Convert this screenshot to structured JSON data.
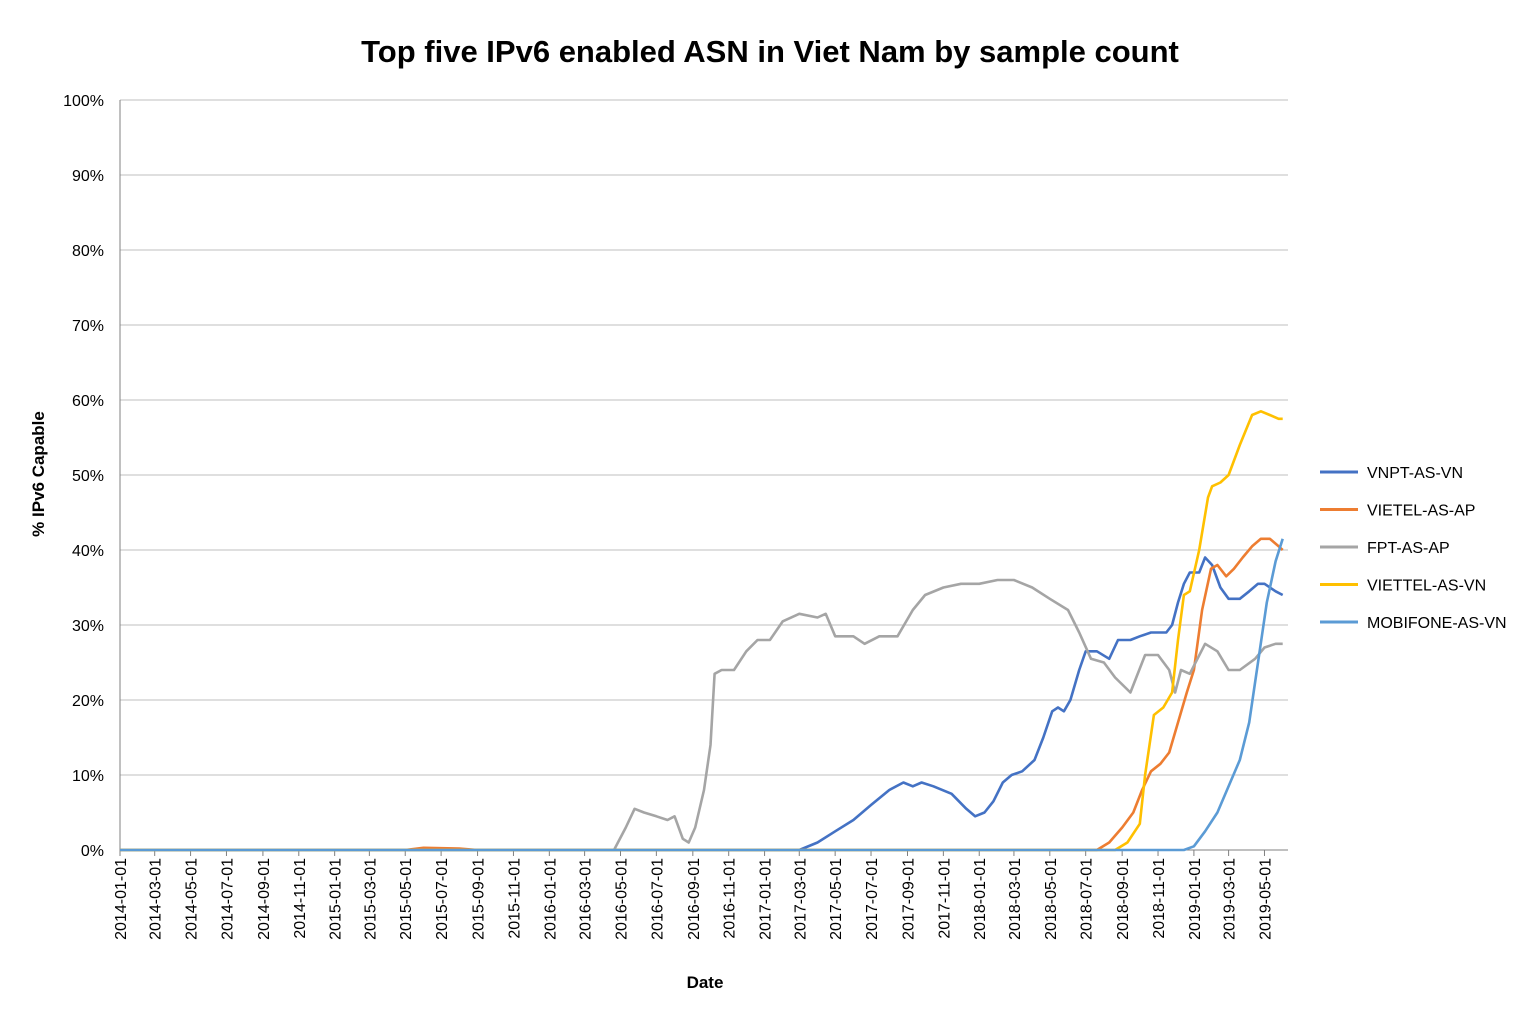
{
  "chart_data": {
    "type": "line",
    "title": "Top five IPv6 enabled ASN in Viet Nam by sample count",
    "xlabel": "Date",
    "ylabel": "% IPv6 Capable",
    "x_range": [
      "2014-01-01",
      "2019-06-10"
    ],
    "x_tick_labels": [
      "2014-01-01",
      "2014-03-01",
      "2014-05-01",
      "2014-07-01",
      "2014-09-01",
      "2014-11-01",
      "2015-01-01",
      "2015-03-01",
      "2015-05-01",
      "2015-07-01",
      "2015-09-01",
      "2015-11-01",
      "2016-01-01",
      "2016-03-01",
      "2016-05-01",
      "2016-07-01",
      "2016-09-01",
      "2016-11-01",
      "2017-01-01",
      "2017-03-01",
      "2017-05-01",
      "2017-07-01",
      "2017-09-01",
      "2017-11-01",
      "2018-01-01",
      "2018-03-01",
      "2018-05-01",
      "2018-07-01",
      "2018-09-01",
      "2018-11-01",
      "2019-01-01",
      "2019-03-01",
      "2019-05-01"
    ],
    "y_tick_labels": [
      "0%",
      "10%",
      "20%",
      "30%",
      "40%",
      "50%",
      "60%",
      "70%",
      "80%",
      "90%",
      "100%"
    ],
    "ylim": [
      0,
      100
    ],
    "grid": true,
    "legend_position": "right",
    "series": [
      {
        "name": "VNPT-AS-VN",
        "color": "#4472c4",
        "points": [
          [
            "2014-01-01",
            0
          ],
          [
            "2017-03-01",
            0
          ],
          [
            "2017-04-01",
            1
          ],
          [
            "2017-05-01",
            2.5
          ],
          [
            "2017-06-01",
            4
          ],
          [
            "2017-07-01",
            6
          ],
          [
            "2017-08-01",
            8
          ],
          [
            "2017-08-25",
            9
          ],
          [
            "2017-09-10",
            8.5
          ],
          [
            "2017-09-25",
            9
          ],
          [
            "2017-10-15",
            8.5
          ],
          [
            "2017-11-15",
            7.5
          ],
          [
            "2017-12-10",
            5.5
          ],
          [
            "2017-12-25",
            4.5
          ],
          [
            "2018-01-10",
            5
          ],
          [
            "2018-01-25",
            6.5
          ],
          [
            "2018-02-10",
            9
          ],
          [
            "2018-02-25",
            10
          ],
          [
            "2018-03-15",
            10.5
          ],
          [
            "2018-04-05",
            12
          ],
          [
            "2018-04-20",
            15
          ],
          [
            "2018-05-05",
            18.5
          ],
          [
            "2018-05-15",
            19
          ],
          [
            "2018-05-25",
            18.5
          ],
          [
            "2018-06-05",
            20
          ],
          [
            "2018-06-20",
            24
          ],
          [
            "2018-07-01",
            26.5
          ],
          [
            "2018-07-20",
            26.5
          ],
          [
            "2018-08-10",
            25.5
          ],
          [
            "2018-08-25",
            28
          ],
          [
            "2018-09-15",
            28
          ],
          [
            "2018-10-01",
            28.5
          ],
          [
            "2018-10-20",
            29
          ],
          [
            "2018-11-15",
            29
          ],
          [
            "2018-11-25",
            30
          ],
          [
            "2018-12-05",
            33
          ],
          [
            "2018-12-15",
            35.5
          ],
          [
            "2018-12-25",
            37
          ],
          [
            "2019-01-10",
            37
          ],
          [
            "2019-01-20",
            39
          ],
          [
            "2019-02-01",
            38
          ],
          [
            "2019-02-15",
            35
          ],
          [
            "2019-03-01",
            33.5
          ],
          [
            "2019-03-20",
            33.5
          ],
          [
            "2019-04-05",
            34.5
          ],
          [
            "2019-04-20",
            35.5
          ],
          [
            "2019-05-01",
            35.5
          ],
          [
            "2019-05-20",
            34.5
          ],
          [
            "2019-06-01",
            34
          ]
        ]
      },
      {
        "name": "VIETEL-AS-AP",
        "color": "#ed7d31",
        "points": [
          [
            "2014-01-01",
            0
          ],
          [
            "2015-05-01",
            0
          ],
          [
            "2015-06-01",
            0.3
          ],
          [
            "2015-08-01",
            0.2
          ],
          [
            "2015-09-01",
            0
          ],
          [
            "2018-07-20",
            0
          ],
          [
            "2018-08-10",
            1
          ],
          [
            "2018-09-01",
            3
          ],
          [
            "2018-09-20",
            5
          ],
          [
            "2018-10-05",
            8
          ],
          [
            "2018-10-20",
            10.5
          ],
          [
            "2018-11-05",
            11.5
          ],
          [
            "2018-11-20",
            13
          ],
          [
            "2018-12-05",
            17
          ],
          [
            "2018-12-20",
            21
          ],
          [
            "2019-01-01",
            24
          ],
          [
            "2019-01-15",
            32
          ],
          [
            "2019-01-30",
            37.5
          ],
          [
            "2019-02-10",
            38
          ],
          [
            "2019-02-25",
            36.5
          ],
          [
            "2019-03-10",
            37.5
          ],
          [
            "2019-03-25",
            39
          ],
          [
            "2019-04-10",
            40.5
          ],
          [
            "2019-04-25",
            41.5
          ],
          [
            "2019-05-10",
            41.5
          ],
          [
            "2019-05-25",
            40.5
          ],
          [
            "2019-06-01",
            40
          ]
        ]
      },
      {
        "name": "FPT-AS-AP",
        "color": "#a5a5a5",
        "points": [
          [
            "2014-01-01",
            0
          ],
          [
            "2016-04-20",
            0
          ],
          [
            "2016-05-10",
            3
          ],
          [
            "2016-05-25",
            5.5
          ],
          [
            "2016-06-10",
            5
          ],
          [
            "2016-07-01",
            4.5
          ],
          [
            "2016-07-20",
            4
          ],
          [
            "2016-08-01",
            4.5
          ],
          [
            "2016-08-15",
            1.5
          ],
          [
            "2016-08-25",
            1
          ],
          [
            "2016-09-05",
            3
          ],
          [
            "2016-09-20",
            8
          ],
          [
            "2016-10-01",
            14
          ],
          [
            "2016-10-08",
            23.5
          ],
          [
            "2016-10-20",
            24
          ],
          [
            "2016-11-10",
            24
          ],
          [
            "2016-12-01",
            26.5
          ],
          [
            "2016-12-20",
            28
          ],
          [
            "2017-01-10",
            28
          ],
          [
            "2017-02-01",
            30.5
          ],
          [
            "2017-03-01",
            31.5
          ],
          [
            "2017-04-01",
            31
          ],
          [
            "2017-04-15",
            31.5
          ],
          [
            "2017-05-01",
            28.5
          ],
          [
            "2017-06-01",
            28.5
          ],
          [
            "2017-06-20",
            27.5
          ],
          [
            "2017-07-15",
            28.5
          ],
          [
            "2017-08-15",
            28.5
          ],
          [
            "2017-09-10",
            32
          ],
          [
            "2017-10-01",
            34
          ],
          [
            "2017-11-01",
            35
          ],
          [
            "2017-12-01",
            35.5
          ],
          [
            "2018-01-01",
            35.5
          ],
          [
            "2018-02-01",
            36
          ],
          [
            "2018-03-01",
            36
          ],
          [
            "2018-04-01",
            35
          ],
          [
            "2018-05-01",
            33.5
          ],
          [
            "2018-06-01",
            32
          ],
          [
            "2018-06-20",
            29
          ],
          [
            "2018-07-10",
            25.5
          ],
          [
            "2018-08-01",
            25
          ],
          [
            "2018-08-20",
            23
          ],
          [
            "2018-09-15",
            21
          ],
          [
            "2018-10-10",
            26
          ],
          [
            "2018-11-01",
            26
          ],
          [
            "2018-11-20",
            24
          ],
          [
            "2018-11-30",
            21
          ],
          [
            "2018-12-10",
            24
          ],
          [
            "2018-12-25",
            23.5
          ],
          [
            "2019-01-20",
            27.5
          ],
          [
            "2019-02-10",
            26.5
          ],
          [
            "2019-03-01",
            24
          ],
          [
            "2019-03-20",
            24
          ],
          [
            "2019-04-15",
            25.5
          ],
          [
            "2019-05-01",
            27
          ],
          [
            "2019-05-20",
            27.5
          ],
          [
            "2019-06-01",
            27.5
          ]
        ]
      },
      {
        "name": "VIETTEL-AS-VN",
        "color": "#ffc000",
        "points": [
          [
            "2014-01-01",
            0
          ],
          [
            "2018-08-20",
            0
          ],
          [
            "2018-09-10",
            1
          ],
          [
            "2018-10-01",
            3.5
          ],
          [
            "2018-10-10",
            10
          ],
          [
            "2018-10-25",
            18
          ],
          [
            "2018-11-10",
            19
          ],
          [
            "2018-11-25",
            21
          ],
          [
            "2018-12-05",
            28
          ],
          [
            "2018-12-15",
            34
          ],
          [
            "2018-12-25",
            34.5
          ],
          [
            "2019-01-10",
            40
          ],
          [
            "2019-01-25",
            47
          ],
          [
            "2019-02-01",
            48.5
          ],
          [
            "2019-02-15",
            49
          ],
          [
            "2019-03-01",
            50
          ],
          [
            "2019-03-20",
            54
          ],
          [
            "2019-04-10",
            58
          ],
          [
            "2019-04-25",
            58.5
          ],
          [
            "2019-05-10",
            58
          ],
          [
            "2019-05-25",
            57.5
          ],
          [
            "2019-06-01",
            57.5
          ]
        ]
      },
      {
        "name": "MOBIFONE-AS-VN",
        "color": "#5b9bd5",
        "points": [
          [
            "2014-01-01",
            0
          ],
          [
            "2018-12-15",
            0
          ],
          [
            "2019-01-01",
            0.5
          ],
          [
            "2019-01-20",
            2.5
          ],
          [
            "2019-02-10",
            5
          ],
          [
            "2019-03-01",
            8.5
          ],
          [
            "2019-03-20",
            12
          ],
          [
            "2019-04-05",
            17
          ],
          [
            "2019-04-20",
            25
          ],
          [
            "2019-05-05",
            33
          ],
          [
            "2019-05-20",
            38.5
          ],
          [
            "2019-06-01",
            41.5
          ]
        ]
      }
    ]
  }
}
